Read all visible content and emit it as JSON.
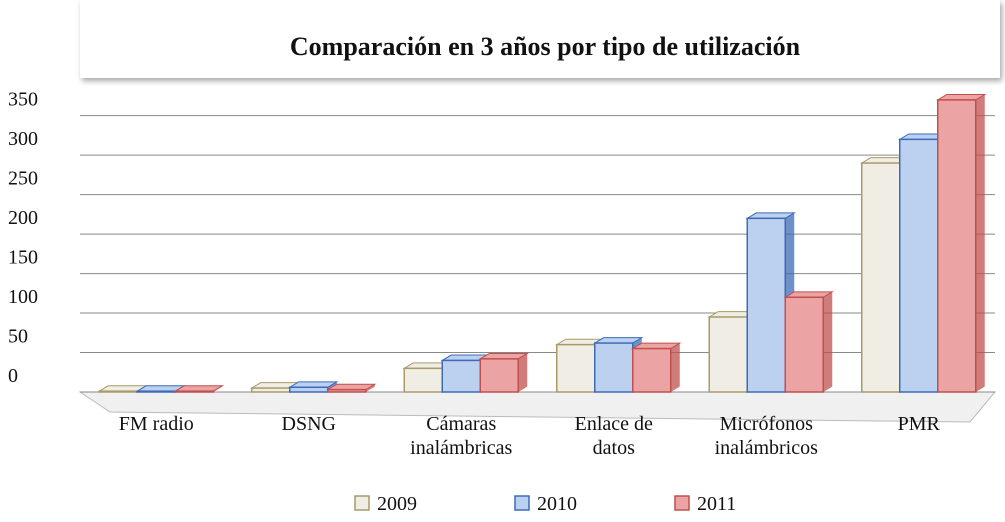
{
  "chart_data": {
    "type": "bar3d",
    "title": "Comparación en 3 años por tipo de utilización",
    "categories": [
      [
        "FM radio"
      ],
      [
        "DSNG"
      ],
      [
        "Cámaras",
        "inalámbricas"
      ],
      [
        "Enlace de",
        "datos"
      ],
      [
        "Micrófonos",
        "inalámbricos"
      ],
      [
        "PMR"
      ]
    ],
    "series": [
      {
        "name": "2009",
        "color": "#efede4",
        "stroke": "#a99a6a",
        "values": [
          1,
          5,
          30,
          60,
          95,
          290
        ]
      },
      {
        "name": "2010",
        "color": "#bcd0f0",
        "stroke": "#3d6bb8",
        "values": [
          1,
          6,
          40,
          62,
          220,
          320
        ]
      },
      {
        "name": "2011",
        "color": "#eba3a3",
        "stroke": "#c0504d",
        "values": [
          1,
          3,
          42,
          55,
          120,
          370
        ]
      }
    ],
    "ylim": [
      0,
      380
    ],
    "yticks": [
      0,
      50,
      100,
      150,
      200,
      250,
      300,
      350
    ],
    "grid": true
  }
}
